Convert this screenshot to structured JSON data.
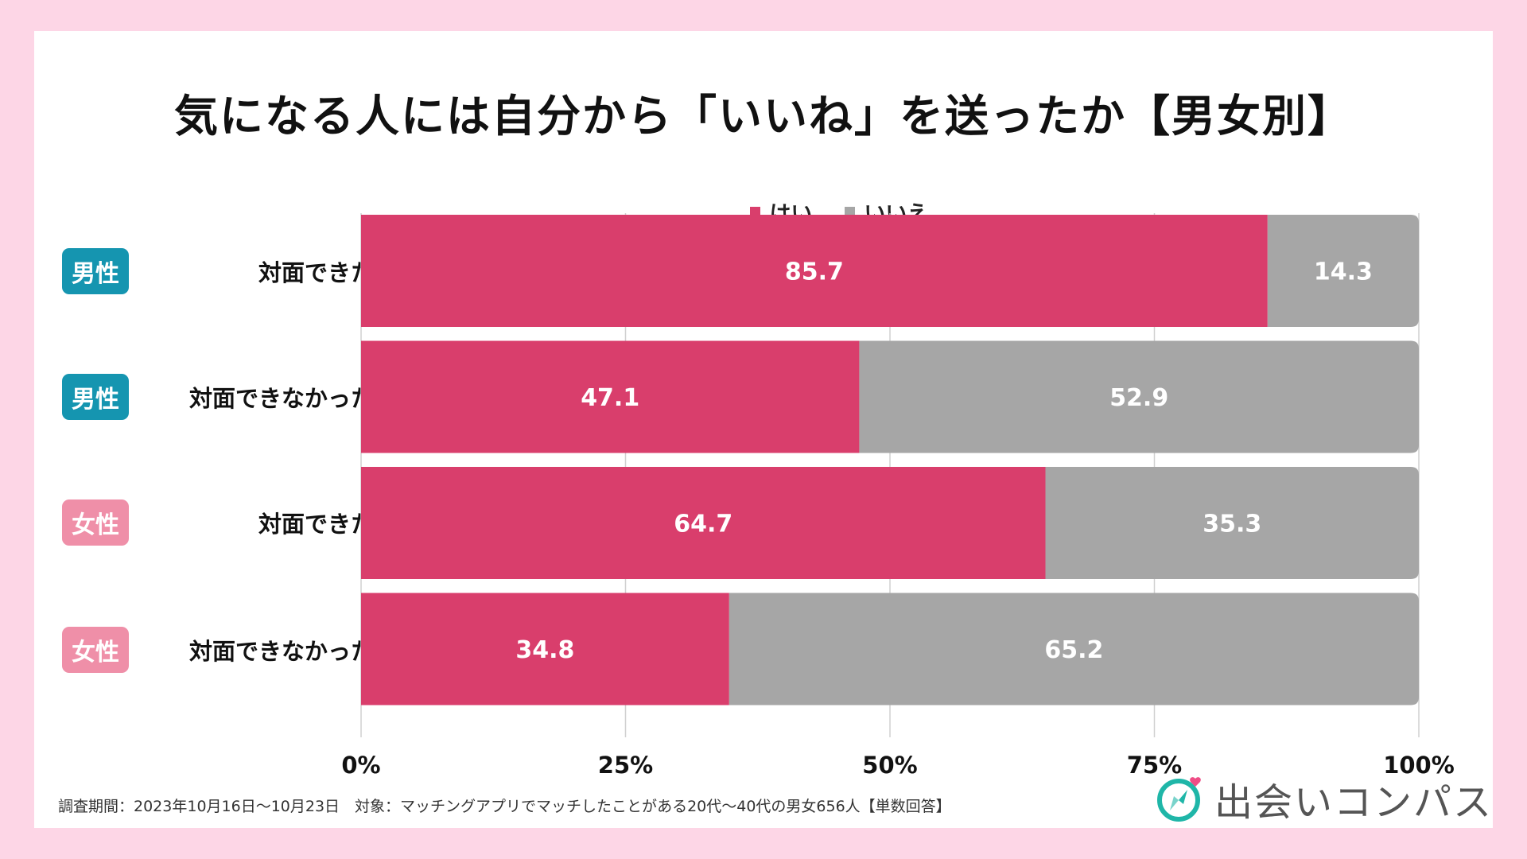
{
  "title": "気になる人には自分から「いいね」を送ったか【男女別】",
  "legend": [
    {
      "label": "はい",
      "color": "#d93e6c"
    },
    {
      "label": "いいえ",
      "color": "#a6a6a6"
    }
  ],
  "rows": [
    {
      "badge": "男性",
      "badge_color": "#1595b0",
      "label": "対面できた"
    },
    {
      "badge": "男性",
      "badge_color": "#1595b0",
      "label": "対面できなかった"
    },
    {
      "badge": "女性",
      "badge_color": "#ef8fa8",
      "label": "対面できた"
    },
    {
      "badge": "女性",
      "badge_color": "#ef8fa8",
      "label": "対面できなかった"
    }
  ],
  "chart_data": {
    "type": "bar",
    "orientation": "horizontal-stacked-100",
    "title": "気になる人には自分から「いいね」を送ったか【男女別】",
    "categories": [
      "男性 対面できた",
      "男性 対面できなかった",
      "女性 対面できた",
      "女性 対面できなかった"
    ],
    "series": [
      {
        "name": "はい",
        "color": "#d93e6c",
        "values": [
          85.7,
          47.1,
          64.7,
          34.8
        ]
      },
      {
        "name": "いいえ",
        "color": "#a6a6a6",
        "values": [
          14.3,
          52.9,
          35.3,
          65.2
        ]
      }
    ],
    "value_labels": {
      "はい": [
        "85.7",
        "47.1",
        "64.7",
        "34.8"
      ],
      "いいえ": [
        "14.3",
        "52.9",
        "35.3",
        "65.2"
      ]
    },
    "xlim": [
      0,
      100
    ],
    "x_ticks": [
      0,
      25,
      50,
      75,
      100
    ],
    "x_tick_labels": [
      "0%",
      "25%",
      "50%",
      "75%",
      "100%"
    ],
    "grid": true,
    "legend_position": "top"
  },
  "footer": "調査期間：2023年10月16日〜10月23日　対象：マッチングアプリでマッチしたことがある20代〜40代の男女656人【単数回答】",
  "logo": {
    "text": "出会いコンパス",
    "accent": "#1fb6a8",
    "heart": "#ef4d86"
  }
}
